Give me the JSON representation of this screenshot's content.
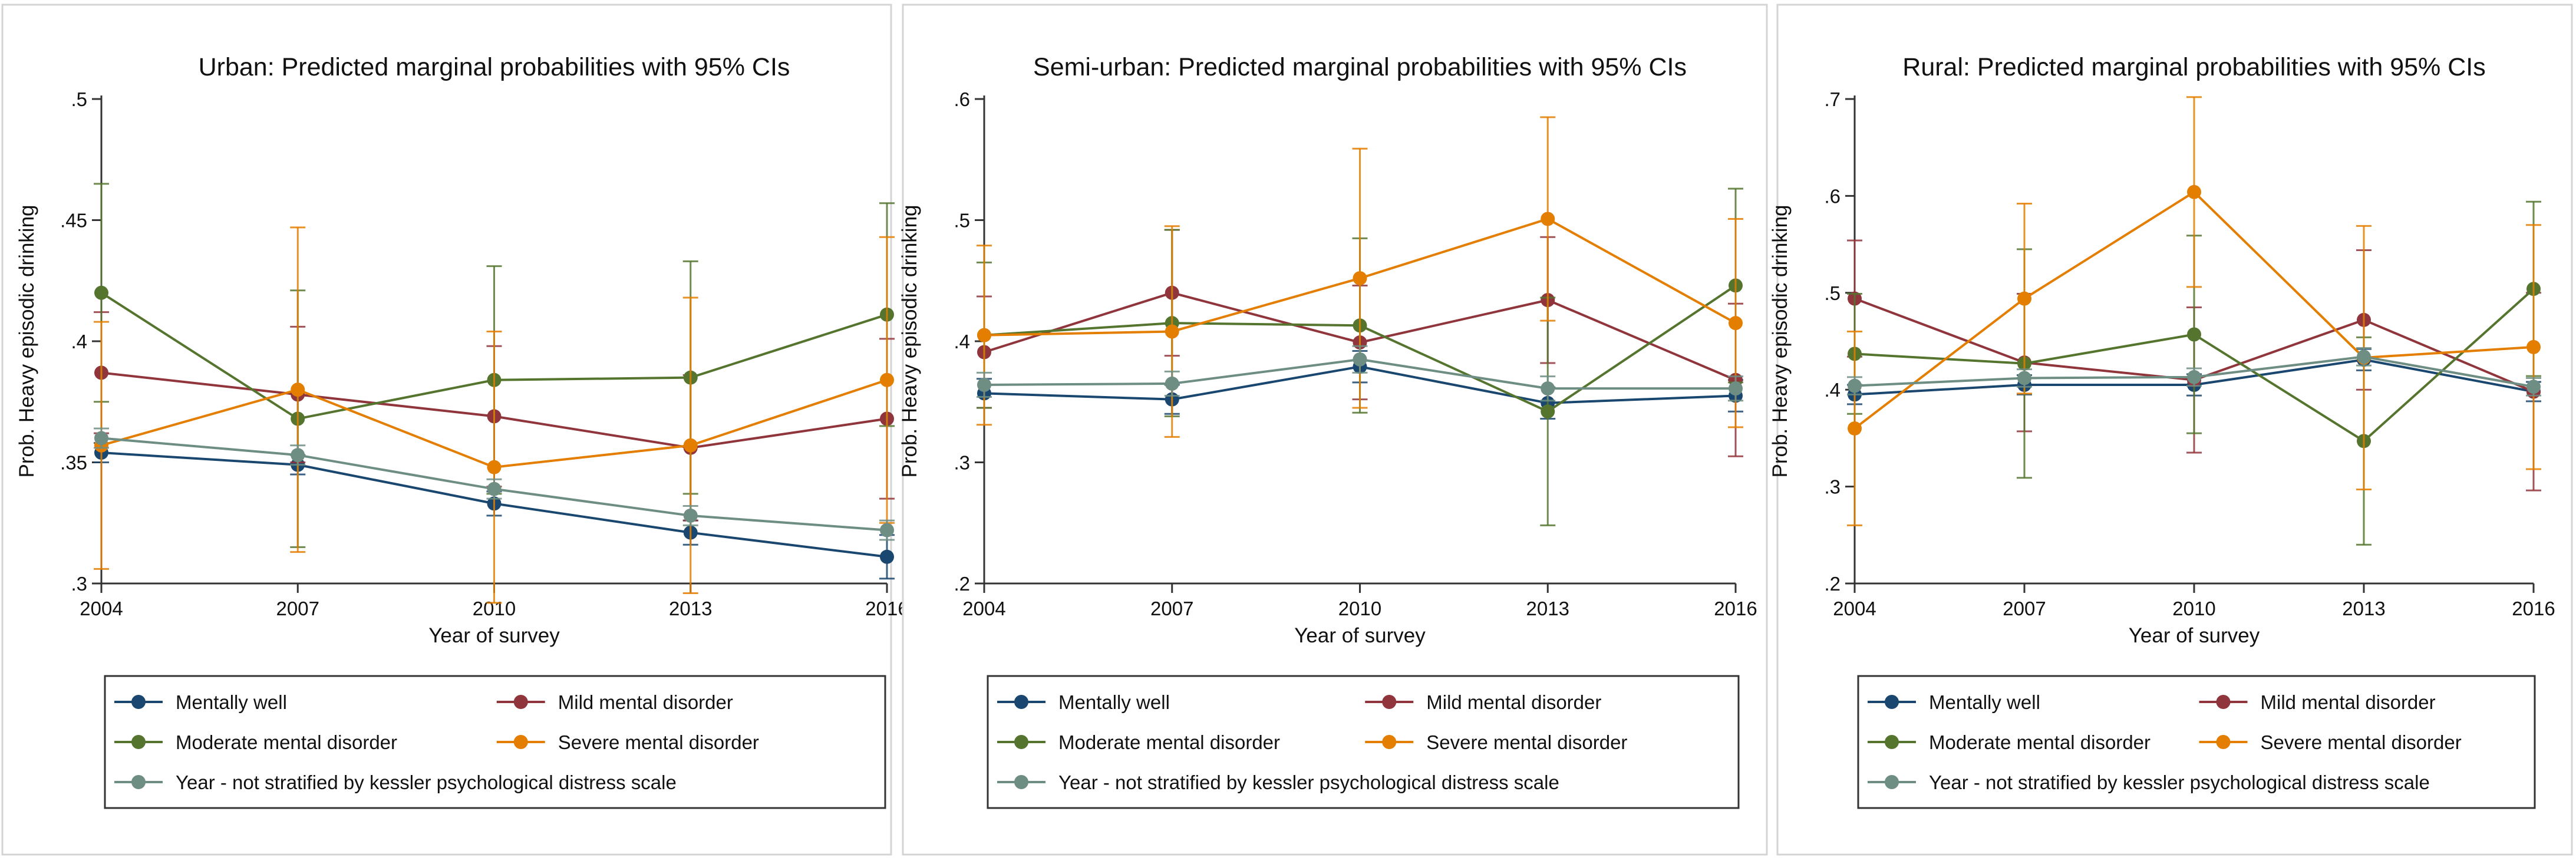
{
  "chart_data": [
    {
      "type": "line",
      "title": "Urban: Predicted marginal probabilities with 95% CIs",
      "xlabel": "Year of survey",
      "ylabel": "Prob. Heavy episodic drinking",
      "categories": [
        "2004",
        "2007",
        "2010",
        "2013",
        "2016"
      ],
      "ylim": [
        0.3,
        0.5
      ],
      "yticks": [
        0.3,
        0.35,
        0.4,
        0.45,
        0.5
      ],
      "ytick_labels": [
        ".3",
        ".35",
        ".4",
        ".45",
        ".5"
      ],
      "series": [
        {
          "name": "Mentally well",
          "color": "#1a476f",
          "values": [
            0.354,
            0.349,
            0.333,
            0.321,
            0.311
          ],
          "lower": [
            0.35,
            0.345,
            0.328,
            0.316,
            0.302
          ],
          "upper": [
            0.358,
            0.353,
            0.338,
            0.326,
            0.32
          ]
        },
        {
          "name": "Mild mental disorder",
          "color": "#90353b",
          "values": [
            0.387,
            0.378,
            0.369,
            0.356,
            0.368
          ],
          "lower": [
            0.362,
            0.35,
            0.34,
            0.326,
            0.335
          ],
          "upper": [
            0.412,
            0.406,
            0.398,
            0.386,
            0.401
          ]
        },
        {
          "name": "Moderate mental disorder",
          "color": "#55752f",
          "values": [
            0.42,
            0.368,
            0.384,
            0.385,
            0.411
          ],
          "lower": [
            0.375,
            0.315,
            0.337,
            0.337,
            0.365
          ],
          "upper": [
            0.465,
            0.421,
            0.431,
            0.433,
            0.457
          ]
        },
        {
          "name": "Severe mental disorder",
          "color": "#e37e00",
          "values": [
            0.357,
            0.38,
            0.348,
            0.357,
            0.384
          ],
          "lower": [
            0.306,
            0.313,
            0.292,
            0.296,
            0.325
          ],
          "upper": [
            0.408,
            0.447,
            0.404,
            0.418,
            0.443
          ]
        },
        {
          "name": "Year - not stratified by kessler psychological distress scale",
          "color": "#6e8e84",
          "values": [
            0.36,
            0.353,
            0.339,
            0.328,
            0.322
          ],
          "lower": [
            0.356,
            0.349,
            0.335,
            0.324,
            0.318
          ],
          "upper": [
            0.364,
            0.357,
            0.343,
            0.332,
            0.326
          ]
        }
      ]
    },
    {
      "type": "line",
      "title": "Semi-urban: Predicted marginal probabilities with 95% CIs",
      "xlabel": "Year of survey",
      "ylabel": "Prob. Heavy episodic drinking",
      "categories": [
        "2004",
        "2007",
        "2010",
        "2013",
        "2016"
      ],
      "ylim": [
        0.2,
        0.6
      ],
      "yticks": [
        0.2,
        0.3,
        0.4,
        0.5,
        0.6
      ],
      "ytick_labels": [
        ".2",
        ".3",
        ".4",
        ".5",
        ".6"
      ],
      "series": [
        {
          "name": "Mentally well",
          "color": "#1a476f",
          "values": [
            0.357,
            0.352,
            0.379,
            0.349,
            0.355
          ],
          "lower": [
            0.345,
            0.34,
            0.366,
            0.336,
            0.342
          ],
          "upper": [
            0.369,
            0.364,
            0.392,
            0.362,
            0.368
          ]
        },
        {
          "name": "Mild mental disorder",
          "color": "#90353b",
          "values": [
            0.391,
            0.44,
            0.399,
            0.434,
            0.368
          ],
          "lower": [
            0.345,
            0.388,
            0.352,
            0.382,
            0.305
          ],
          "upper": [
            0.437,
            0.492,
            0.446,
            0.486,
            0.431
          ]
        },
        {
          "name": "Moderate mental disorder",
          "color": "#55752f",
          "values": [
            0.405,
            0.415,
            0.413,
            0.342,
            0.446
          ],
          "lower": [
            0.345,
            0.338,
            0.341,
            0.248,
            0.366
          ],
          "upper": [
            0.465,
            0.492,
            0.485,
            0.436,
            0.526
          ]
        },
        {
          "name": "Severe mental disorder",
          "color": "#e37e00",
          "values": [
            0.405,
            0.408,
            0.452,
            0.501,
            0.415
          ],
          "lower": [
            0.331,
            0.321,
            0.345,
            0.417,
            0.329
          ],
          "upper": [
            0.479,
            0.495,
            0.559,
            0.585,
            0.501
          ]
        },
        {
          "name": "Year - not stratified by kessler psychological distress scale",
          "color": "#6e8e84",
          "values": [
            0.364,
            0.365,
            0.385,
            0.361,
            0.361
          ],
          "lower": [
            0.354,
            0.355,
            0.374,
            0.351,
            0.351
          ],
          "upper": [
            0.374,
            0.375,
            0.396,
            0.371,
            0.371
          ]
        }
      ]
    },
    {
      "type": "line",
      "title": "Rural: Predicted marginal probabilities with 95% CIs",
      "xlabel": "Year of survey",
      "ylabel": "Prob. Heavy episodic drinking",
      "categories": [
        "2004",
        "2007",
        "2010",
        "2013",
        "2016"
      ],
      "ylim": [
        0.2,
        0.7
      ],
      "yticks": [
        0.2,
        0.3,
        0.4,
        0.5,
        0.6,
        0.7
      ],
      "ytick_labels": [
        ".2",
        ".3",
        ".4",
        ".5",
        ".6",
        ".7"
      ],
      "series": [
        {
          "name": "Mentally well",
          "color": "#1a476f",
          "values": [
            0.395,
            0.405,
            0.405,
            0.431,
            0.398
          ],
          "lower": [
            0.385,
            0.395,
            0.394,
            0.42,
            0.388
          ],
          "upper": [
            0.405,
            0.415,
            0.416,
            0.442,
            0.408
          ]
        },
        {
          "name": "Mild mental disorder",
          "color": "#90353b",
          "values": [
            0.494,
            0.428,
            0.41,
            0.472,
            0.398
          ],
          "lower": [
            0.434,
            0.357,
            0.335,
            0.4,
            0.296
          ],
          "upper": [
            0.554,
            0.499,
            0.485,
            0.544,
            0.5
          ]
        },
        {
          "name": "Moderate mental disorder",
          "color": "#55752f",
          "values": [
            0.437,
            0.427,
            0.457,
            0.347,
            0.504
          ],
          "lower": [
            0.375,
            0.309,
            0.355,
            0.24,
            0.414
          ],
          "upper": [
            0.499,
            0.545,
            0.559,
            0.454,
            0.594
          ]
        },
        {
          "name": "Severe mental disorder",
          "color": "#e37e00",
          "values": [
            0.36,
            0.494,
            0.604,
            0.433,
            0.444
          ],
          "lower": [
            0.26,
            0.396,
            0.506,
            0.297,
            0.318
          ],
          "upper": [
            0.46,
            0.592,
            0.702,
            0.569,
            0.57
          ]
        },
        {
          "name": "Year - not stratified by kessler psychological distress scale",
          "color": "#6e8e84",
          "values": [
            0.404,
            0.412,
            0.413,
            0.434,
            0.403
          ],
          "lower": [
            0.395,
            0.403,
            0.404,
            0.425,
            0.394
          ],
          "upper": [
            0.413,
            0.421,
            0.422,
            0.443,
            0.412
          ]
        }
      ]
    }
  ]
}
